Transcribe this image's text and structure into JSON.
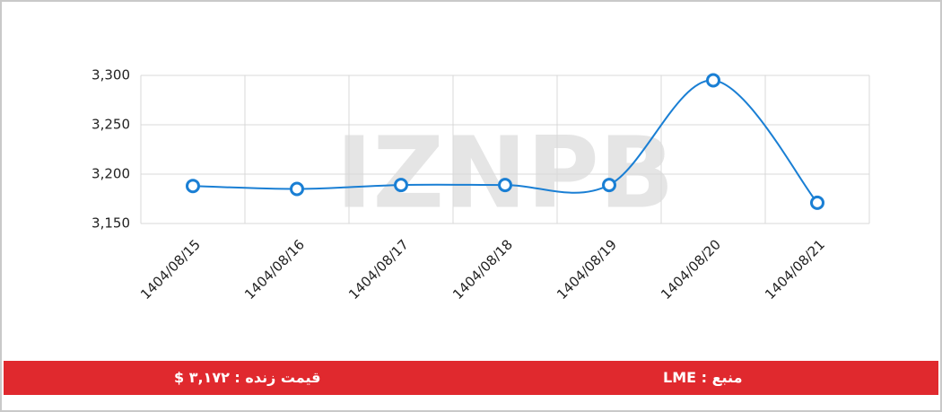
{
  "chart_data": {
    "type": "line",
    "categories": [
      "1404/08/15",
      "1404/08/16",
      "1404/08/17",
      "1404/08/18",
      "1404/08/19",
      "1404/08/20",
      "1404/08/21"
    ],
    "values": [
      3188,
      3185,
      3189,
      3189,
      3189,
      3295,
      3171
    ],
    "color": "#1a7fd4",
    "ylim": [
      3150,
      3300
    ],
    "yticks": [
      {
        "value": 3150,
        "label": "3,150"
      },
      {
        "value": 3200,
        "label": "3,200"
      },
      {
        "value": 3250,
        "label": "3,250"
      },
      {
        "value": 3300,
        "label": "3,300"
      }
    ],
    "grid": true,
    "watermark": "IZNPB"
  },
  "footer": {
    "price": "قیمت زنده : ۳,۱۷۲ $",
    "source": "منبع : LME"
  }
}
